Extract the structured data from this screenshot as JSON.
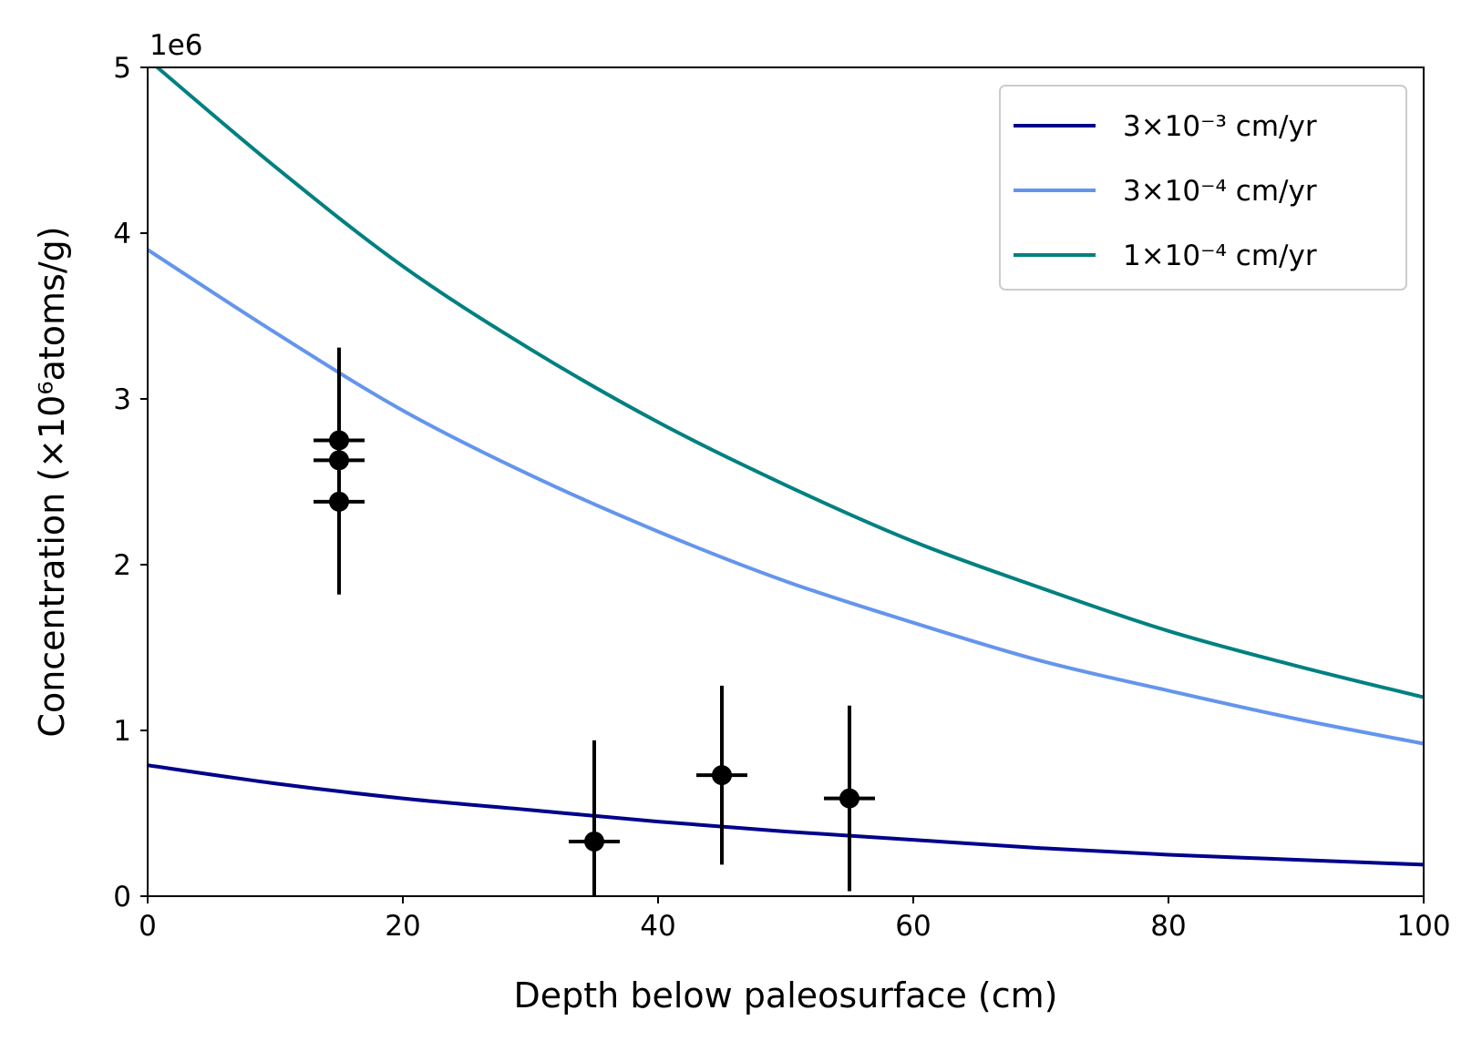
{
  "chart_data": {
    "type": "line",
    "title": "",
    "xlabel": "Depth below paleosurface (cm)",
    "ylabel": "Concentration (×10⁶atoms/g)",
    "y_offset_text": "1e6",
    "xlim": [
      0,
      100
    ],
    "ylim": [
      0,
      5000000
    ],
    "x_ticks": [
      0,
      20,
      40,
      60,
      80,
      100
    ],
    "x_tick_labels": [
      "0",
      "20",
      "40",
      "60",
      "80",
      "100"
    ],
    "y_ticks": [
      0,
      1000000,
      2000000,
      3000000,
      4000000,
      5000000
    ],
    "y_tick_labels": [
      "0",
      "1",
      "2",
      "3",
      "4",
      "5"
    ],
    "grid": false,
    "legend_position": "top-right",
    "series": [
      {
        "name": "3×10⁻³ cm/yr",
        "color": "#00008b",
        "x": [
          0,
          10,
          20,
          30,
          40,
          50,
          60,
          70,
          80,
          90,
          100
        ],
        "y": [
          790000,
          680000,
          590000,
          520000,
          450000,
          390000,
          340000,
          290000,
          250000,
          220000,
          190000
        ]
      },
      {
        "name": "3×10⁻⁴ cm/yr",
        "color": "#6495ed",
        "x": [
          0,
          10,
          20,
          30,
          40,
          50,
          60,
          70,
          80,
          90,
          100
        ],
        "y": [
          3900000,
          3400000,
          2930000,
          2540000,
          2200000,
          1900000,
          1650000,
          1420000,
          1240000,
          1070000,
          920000
        ]
      },
      {
        "name": "1×10⁻⁴ cm/yr",
        "color": "#008080",
        "x": [
          0,
          10,
          20,
          30,
          40,
          50,
          60,
          70,
          80,
          90,
          100
        ],
        "y": [
          5050000,
          4400000,
          3800000,
          3300000,
          2860000,
          2480000,
          2140000,
          1860000,
          1600000,
          1390000,
          1200000
        ]
      }
    ],
    "points": {
      "color": "#000000",
      "data": [
        {
          "x": 15,
          "y": 2750000,
          "xerr": 2,
          "yerr": 560000
        },
        {
          "x": 15,
          "y": 2630000,
          "xerr": 2,
          "yerr": 560000
        },
        {
          "x": 15,
          "y": 2380000,
          "xerr": 2,
          "yerr": 560000
        },
        {
          "x": 35,
          "y": 330000,
          "xerr": 2,
          "yerr": 610000
        },
        {
          "x": 45,
          "y": 730000,
          "xerr": 2,
          "yerr": 540000
        },
        {
          "x": 55,
          "y": 590000,
          "xerr": 2,
          "yerr": 560000
        }
      ]
    }
  }
}
